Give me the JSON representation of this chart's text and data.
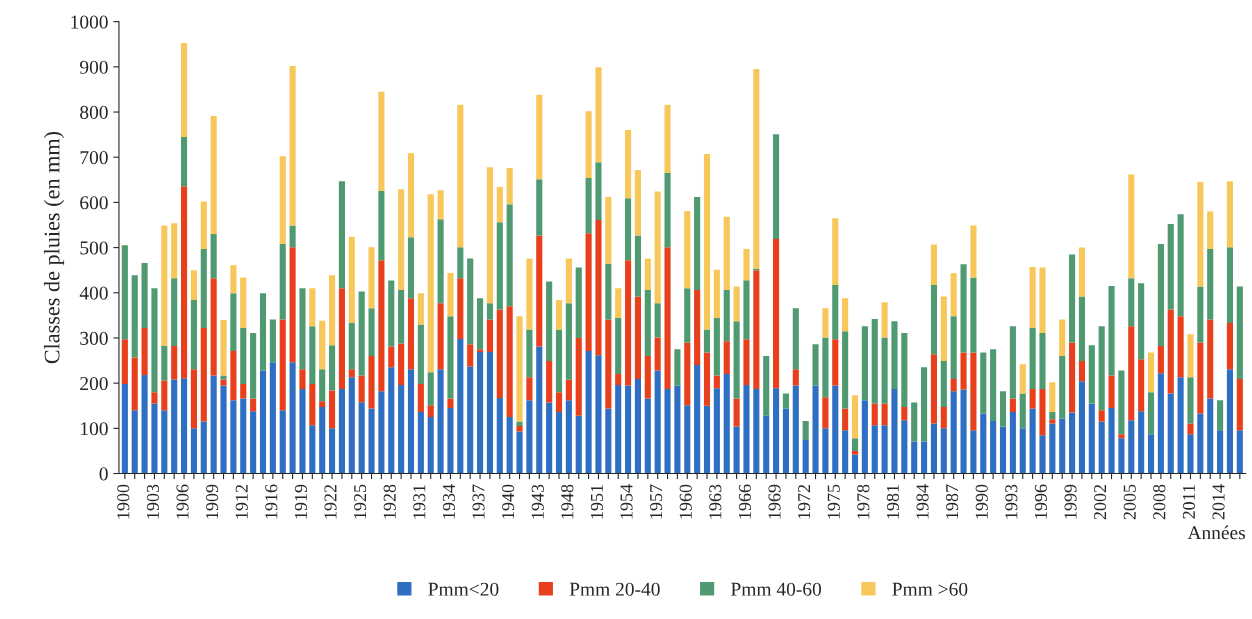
{
  "chart_data": {
    "type": "bar",
    "stacked": true,
    "ylabel": "Classes de pluies (en mm)",
    "xlabel": "Années",
    "legend": "bottom",
    "grid": false,
    "ylim": [
      0,
      1000
    ],
    "yticks": [
      0,
      100,
      200,
      300,
      400,
      500,
      600,
      700,
      800,
      900,
      1000
    ],
    "categories": [
      "1900",
      null,
      null,
      "1903",
      null,
      null,
      "1906",
      null,
      null,
      "1909",
      null,
      null,
      "1912",
      null,
      null,
      "1916",
      null,
      null,
      "1919",
      null,
      null,
      "1922",
      null,
      null,
      "1925",
      null,
      null,
      "1928",
      null,
      null,
      "1931",
      null,
      null,
      "1934",
      null,
      null,
      "1937",
      null,
      null,
      "1940",
      null,
      null,
      "1943",
      null,
      null,
      "1948",
      null,
      null,
      "1951",
      null,
      null,
      "1954",
      null,
      null,
      "1957",
      null,
      null,
      "1960",
      null,
      null,
      "1963",
      null,
      null,
      "1966",
      null,
      null,
      "1969",
      null,
      null,
      "1972",
      null,
      null,
      "1975",
      null,
      null,
      "1978",
      null,
      null,
      "1981",
      null,
      null,
      "1984",
      null,
      null,
      "1987",
      null,
      null,
      "1990",
      null,
      null,
      "1993",
      null,
      null,
      "1996",
      null,
      null,
      "1999",
      null,
      null,
      "2002",
      null,
      null,
      "2005",
      null,
      null,
      "2008",
      null,
      null,
      "2011",
      null,
      null,
      "2014",
      null,
      null
    ],
    "series": [
      {
        "name": "Pmm<20",
        "color": "#2e6fc4",
        "values": [
          198,
          140,
          218,
          155,
          140,
          208,
          211,
          100,
          115,
          217,
          195,
          162,
          166,
          138,
          228,
          246,
          140,
          246,
          187,
          107,
          147,
          100,
          187,
          213,
          158,
          144,
          182,
          235,
          196,
          231,
          136,
          125,
          231,
          145,
          298,
          237,
          269,
          269,
          167,
          125,
          93,
          162,
          281,
          157,
          136,
          162,
          128,
          271,
          262,
          144,
          196,
          195,
          209,
          166,
          228,
          187,
          195,
          151,
          240,
          150,
          189,
          220,
          104,
          196,
          187,
          128,
          189,
          144,
          195,
          74,
          195,
          100,
          195,
          96,
          42,
          162,
          107,
          107,
          187,
          118,
          71,
          71,
          111,
          100,
          182,
          186,
          96,
          133,
          116,
          104,
          136,
          100,
          144,
          85,
          111,
          122,
          135,
          204,
          155,
          115,
          145,
          78,
          118,
          138,
          87,
          222,
          177,
          213,
          87,
          133,
          166,
          96,
          231,
          96
        ]
      },
      {
        "name": "Pmm 20-40",
        "color": "#e8401c",
        "values": [
          99,
          117,
          104,
          25,
          66,
          74,
          425,
          131,
          207,
          215,
          13,
          109,
          32,
          28,
          0,
          0,
          201,
          255,
          44,
          91,
          13,
          84,
          223,
          18,
          59,
          116,
          290,
          46,
          92,
          157,
          62,
          26,
          146,
          21,
          134,
          49,
          6,
          72,
          196,
          245,
          12,
          51,
          246,
          92,
          44,
          46,
          172,
          261,
          299,
          197,
          24,
          277,
          183,
          94,
          73,
          314,
          0,
          139,
          166,
          118,
          28,
          73,
          62,
          101,
          263,
          0,
          330,
          0,
          36,
          0,
          0,
          69,
          102,
          48,
          8,
          0,
          48,
          48,
          0,
          29,
          0,
          0,
          153,
          47,
          27,
          82,
          172,
          0,
          0,
          0,
          30,
          0,
          43,
          102,
          9,
          0,
          155,
          45,
          0,
          25,
          72,
          9,
          208,
          115,
          0,
          60,
          186,
          135,
          24,
          157,
          175,
          0,
          102,
          113
        ]
      },
      {
        "name": "Pmm 40-60",
        "color": "#4f9a70",
        "values": [
          208,
          182,
          144,
          230,
          76,
          150,
          109,
          153,
          175,
          98,
          9,
          128,
          124,
          145,
          171,
          95,
          167,
          48,
          179,
          128,
          71,
          100,
          237,
          102,
          186,
          106,
          153,
          146,
          118,
          135,
          132,
          73,
          186,
          182,
          69,
          190,
          113,
          36,
          193,
          226,
          10,
          106,
          124,
          176,
          139,
          169,
          156,
          122,
          128,
          124,
          124,
          137,
          135,
          146,
          76,
          164,
          80,
          120,
          206,
          51,
          127,
          113,
          171,
          131,
          4,
          132,
          232,
          33,
          135,
          42,
          91,
          132,
          120,
          171,
          28,
          164,
          187,
          146,
          150,
          164,
          86,
          164,
          153,
          102,
          139,
          195,
          166,
          135,
          159,
          78,
          160,
          77,
          135,
          124,
          16,
          138,
          195,
          143,
          129,
          186,
          198,
          141,
          106,
          168,
          93,
          226,
          189,
          226,
          102,
          124,
          156,
          66,
          168,
          205
        ]
      },
      {
        "name": "Pmm >60",
        "color": "#f7c75a",
        "values": [
          0,
          0,
          0,
          0,
          267,
          122,
          208,
          66,
          105,
          261,
          123,
          62,
          112,
          0,
          0,
          0,
          194,
          353,
          0,
          84,
          107,
          155,
          0,
          191,
          0,
          135,
          220,
          0,
          223,
          186,
          69,
          394,
          64,
          96,
          315,
          0,
          0,
          301,
          78,
          80,
          233,
          157,
          187,
          0,
          65,
          99,
          0,
          148,
          210,
          147,
          66,
          151,
          145,
          70,
          247,
          151,
          0,
          171,
          0,
          388,
          107,
          162,
          77,
          69,
          441,
          0,
          0,
          0,
          0,
          0,
          0,
          65,
          148,
          73,
          95,
          0,
          0,
          78,
          0,
          0,
          0,
          0,
          90,
          143,
          95,
          0,
          115,
          0,
          0,
          0,
          0,
          65,
          135,
          145,
          66,
          81,
          0,
          108,
          0,
          0,
          0,
          0,
          230,
          0,
          88,
          0,
          0,
          0,
          95,
          231,
          83,
          0,
          146,
          0
        ]
      }
    ]
  }
}
